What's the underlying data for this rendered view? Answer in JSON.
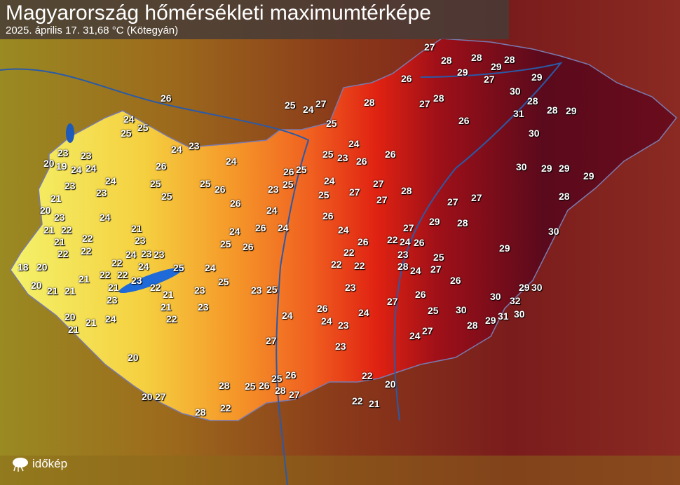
{
  "header": {
    "title": "Magyarország hőmérsékleti maximumtérképe",
    "subtitle": "2025. április 17.   31,68 °C (Kötegyán)"
  },
  "logo": {
    "text": "időkép",
    "icon": "cloud-sun-icon"
  },
  "map": {
    "colors": {
      "cool": "#f2ef60",
      "mid": "#f5a030",
      "warm": "#e82010",
      "hot": "#5a0a18"
    },
    "values": [
      "26",
      "25",
      "24",
      "25",
      "23",
      "20",
      "19",
      "23",
      "24",
      "24",
      "23",
      "21",
      "20",
      "23",
      "21",
      "22",
      "22",
      "21",
      "18",
      "20",
      "20",
      "21",
      "21",
      "21",
      "20",
      "21",
      "22",
      "22",
      "24",
      "23",
      "24",
      "22",
      "21",
      "23",
      "24",
      "21",
      "22",
      "23",
      "23",
      "21",
      "20",
      "22",
      "23",
      "22",
      "21",
      "20",
      "22",
      "21",
      "23",
      "24",
      "24",
      "23",
      "25",
      "23",
      "24",
      "25",
      "24",
      "25",
      "26",
      "25",
      "26",
      "24",
      "23",
      "24",
      "26",
      "25",
      "25",
      "26",
      "23",
      "26",
      "25",
      "24",
      "23",
      "24",
      "25",
      "26",
      "25",
      "27",
      "25",
      "24",
      "25",
      "26",
      "24",
      "25",
      "23",
      "24",
      "22",
      "22",
      "23",
      "24",
      "23",
      "24",
      "25",
      "26",
      "27",
      "26",
      "27",
      "26",
      "25",
      "24",
      "26",
      "27",
      "28",
      "27",
      "26",
      "27",
      "26",
      "27",
      "28",
      "27",
      "26",
      "27",
      "28",
      "26",
      "27",
      "28",
      "27",
      "28",
      "29",
      "28",
      "27",
      "28",
      "29",
      "30",
      "31",
      "29",
      "28",
      "30",
      "29",
      "30",
      "29",
      "29",
      "28",
      "29",
      "28",
      "29",
      "30",
      "29",
      "30",
      "32",
      "30",
      "31",
      "30",
      "29",
      "30",
      "28",
      "27",
      "28",
      "29",
      "27",
      "26",
      "27",
      "26",
      "25",
      "24",
      "26",
      "25",
      "24",
      "23",
      "24",
      "22",
      "22",
      "23",
      "24",
      "22",
      "20",
      "21",
      "22",
      "28",
      "25",
      "22",
      "28",
      "27",
      "28"
    ]
  }
}
